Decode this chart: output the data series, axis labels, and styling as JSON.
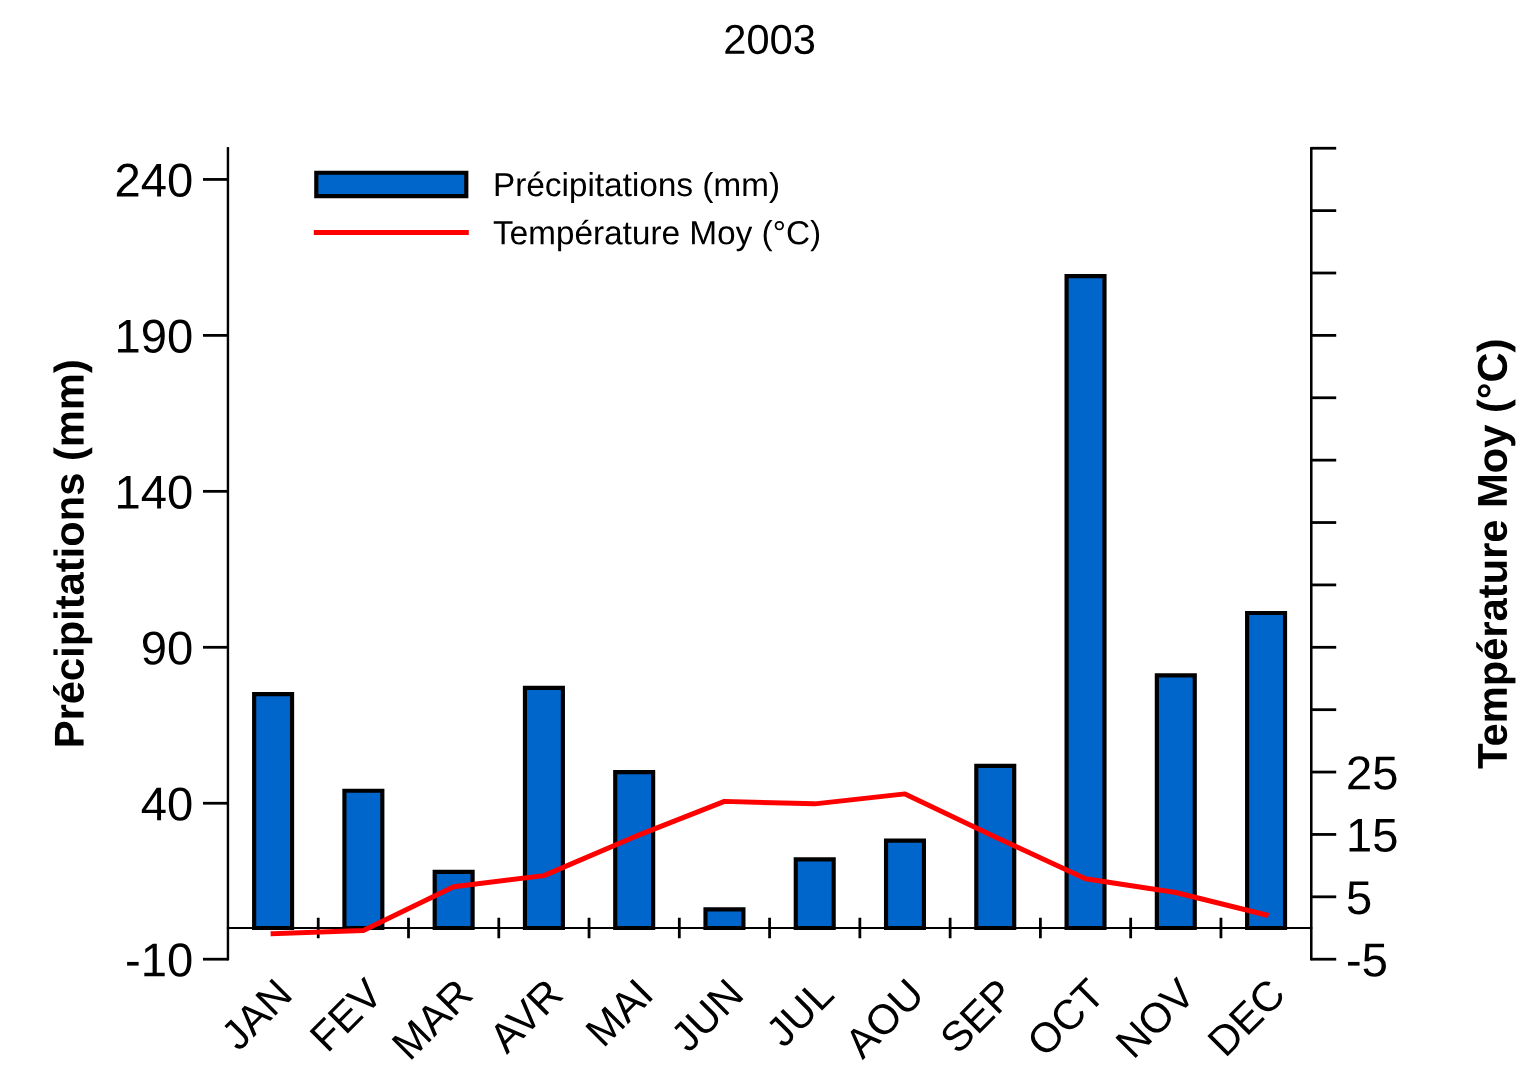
{
  "chart_data": {
    "type": "bar",
    "title": "2003",
    "ylabel": "Précipitations (mm)",
    "y2label": "Température Moy (°C)",
    "categories": [
      "JAN",
      "FEV",
      "MAR",
      "AVR",
      "MAI",
      "JUN",
      "JUL",
      "AOU",
      "SEP",
      "OCT",
      "NOV",
      "DEC"
    ],
    "series": [
      {
        "name": "Précipitations (mm)",
        "color": "#0066cc",
        "values": [
          75,
          44,
          18,
          77,
          50,
          6,
          22,
          28,
          52,
          209,
          81,
          101
        ]
      },
      {
        "name": "Température Moy (°C)",
        "type": "line",
        "axis": "y2",
        "color": "#ff0000",
        "values": [
          -0.9,
          -0.4,
          6.6,
          8.4,
          14.6,
          20.3,
          19.9,
          21.5,
          14.6,
          7.9,
          5.7,
          2.1
        ]
      }
    ],
    "ylim": [
      -10,
      250
    ],
    "yticks": [
      -10,
      40,
      90,
      140,
      190,
      240
    ],
    "y2lim": [
      -5,
      125
    ],
    "y2ticks": [
      -5,
      5,
      15,
      25,
      {
        "value": 35,
        "label": null
      },
      {
        "value": 45,
        "label": null
      },
      {
        "value": 55,
        "label": null
      },
      {
        "value": 65,
        "label": null
      },
      {
        "value": 75,
        "label": null
      },
      {
        "value": 85,
        "label": null
      },
      {
        "value": 95,
        "label": null
      },
      {
        "value": 105,
        "label": null
      },
      {
        "value": 115,
        "label": null
      },
      {
        "value": 125,
        "label": null
      }
    ],
    "legend": "top left",
    "grid": false,
    "marker": "none",
    "line_style": "solid"
  }
}
